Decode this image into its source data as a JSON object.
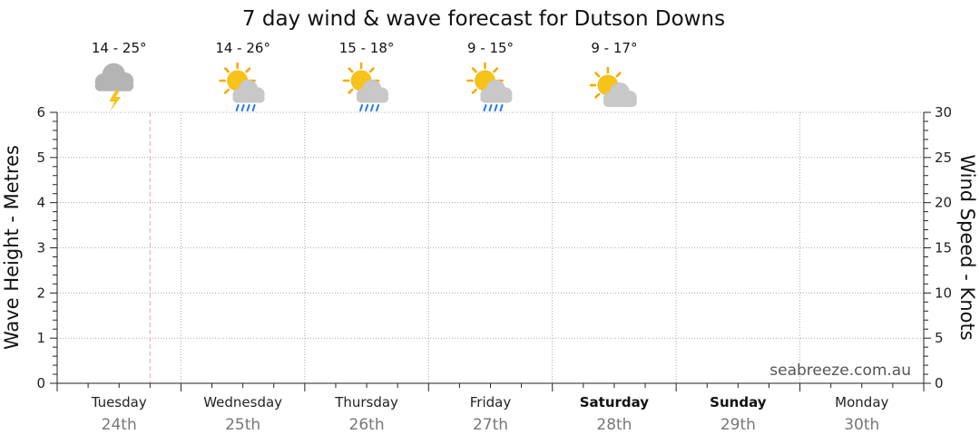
{
  "chart_data": {
    "type": "line",
    "title": "7 day wind & wave forecast for Dutson Downs",
    "ylabel_left": "Wave Height - Metres",
    "ylabel_right": "Wind Speed - Knots",
    "ylim_left": [
      0,
      6
    ],
    "ylim_right": [
      0,
      30
    ],
    "left_ticks": [
      0,
      1,
      2,
      3,
      4,
      5,
      6
    ],
    "right_ticks": [
      0,
      5,
      10,
      15,
      20,
      25,
      30
    ],
    "grid": true,
    "now_marker_day_fraction": 0.75,
    "days": [
      {
        "name": "Tuesday",
        "date": "24th",
        "bold": false,
        "temp": "14 - 25°",
        "icon": "storm-cloud-icon"
      },
      {
        "name": "Wednesday",
        "date": "25th",
        "bold": false,
        "temp": "14 - 26°",
        "icon": "sun-cloud-rain-icon"
      },
      {
        "name": "Thursday",
        "date": "26th",
        "bold": false,
        "temp": "15 - 18°",
        "icon": "sun-cloud-rain-icon"
      },
      {
        "name": "Friday",
        "date": "27th",
        "bold": false,
        "temp": "9 - 15°",
        "icon": "sun-cloud-rain-icon"
      },
      {
        "name": "Saturday",
        "date": "28th",
        "bold": true,
        "temp": "9 - 17°",
        "icon": "sun-cloud-icon"
      },
      {
        "name": "Sunday",
        "date": "29th",
        "bold": true,
        "temp": "",
        "icon": ""
      },
      {
        "name": "Monday",
        "date": "30th",
        "bold": false,
        "temp": "",
        "icon": ""
      }
    ],
    "series": []
  },
  "credit": "seabreeze.com.au",
  "colors": {
    "grid": "#999999",
    "now_marker": "#e8a0a8",
    "sun": "#f7c21a",
    "sun_rays": "#f5a800",
    "cloud": "#c8c8c8",
    "cloud_dark": "#b4b4b4",
    "rain": "#2a7ae2",
    "lightning": "#f7c21a"
  }
}
